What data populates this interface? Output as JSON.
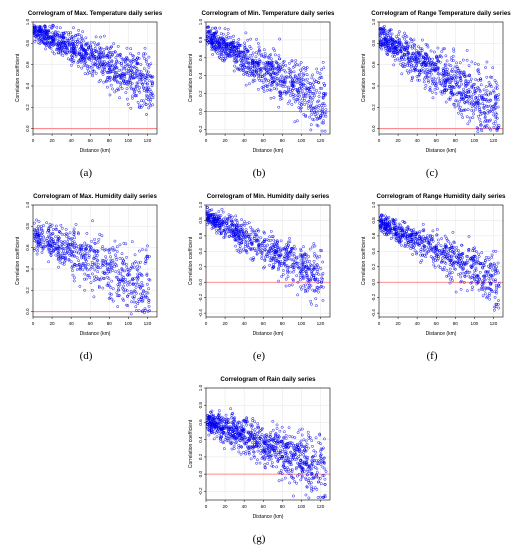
{
  "colors": {
    "points": "#0000ee",
    "zero_line": "#ff6666",
    "grid": "#e4e4e4",
    "frame": "#000000"
  },
  "chart_data": [
    {
      "type": "scatter",
      "title": "Correlogram of Max. Temperature daily series",
      "xlabel": "Distance (km)",
      "ylabel": "Correlation coefficient",
      "subfigure": "(a)",
      "xlim": [
        0,
        130
      ],
      "ylim": [
        -0.05,
        1.0
      ],
      "xticks": [
        0,
        20,
        40,
        60,
        80,
        100,
        120
      ],
      "yticks": [
        0.0,
        0.2,
        0.4,
        0.6,
        0.8,
        1.0
      ],
      "hline": 0,
      "grid": true,
      "n_points": 900,
      "trend": {
        "intercept": 0.93,
        "slope": -0.0042,
        "spread": 0.13,
        "xmax": 125
      }
    },
    {
      "type": "scatter",
      "title": "Correlogram of Min. Temperature daily series",
      "xlabel": "Distance (km)",
      "ylabel": "Correlation coefficient",
      "subfigure": "(b)",
      "xlim": [
        0,
        130
      ],
      "ylim": [
        -0.25,
        1.0
      ],
      "xticks": [
        0,
        20,
        40,
        60,
        80,
        100,
        120
      ],
      "yticks": [
        -0.2,
        0.0,
        0.2,
        0.4,
        0.6,
        0.8,
        1.0
      ],
      "hline": 0,
      "grid": true,
      "n_points": 900,
      "trend": {
        "intercept": 0.85,
        "slope": -0.0062,
        "spread": 0.17,
        "xmax": 125
      }
    },
    {
      "type": "scatter",
      "title": "Correlogram of Range Temperature daily series",
      "xlabel": "Distance (km)",
      "ylabel": "Correlation coefficient",
      "subfigure": "(c)",
      "xlim": [
        0,
        130
      ],
      "ylim": [
        -0.05,
        1.0
      ],
      "xticks": [
        0,
        20,
        40,
        60,
        80,
        100,
        120
      ],
      "yticks": [
        0.0,
        0.2,
        0.4,
        0.6,
        0.8,
        1.0
      ],
      "hline": 0,
      "grid": true,
      "n_points": 900,
      "trend": {
        "intercept": 0.87,
        "slope": -0.0058,
        "spread": 0.16,
        "xmax": 125
      }
    },
    {
      "type": "scatter",
      "title": "Correlogram of Max. Humidity daily series",
      "xlabel": "Distance (km)",
      "ylabel": "Correlation coefficient",
      "subfigure": "(d)",
      "xlim": [
        0,
        130
      ],
      "ylim": [
        -0.05,
        1.0
      ],
      "xticks": [
        0,
        20,
        40,
        60,
        80,
        100,
        120
      ],
      "yticks": [
        0.0,
        0.2,
        0.4,
        0.6,
        0.8,
        1.0
      ],
      "hline": 0,
      "grid": true,
      "n_points": 650,
      "trend": {
        "intercept": 0.72,
        "slope": -0.004,
        "spread": 0.18,
        "xmax": 122
      }
    },
    {
      "type": "scatter",
      "title": "Correlogram of Min. Humidity daily series",
      "xlabel": "Distance (km)",
      "ylabel": "Correlation coefficient",
      "subfigure": "(e)",
      "xlim": [
        0,
        130
      ],
      "ylim": [
        -0.45,
        1.0
      ],
      "xticks": [
        0,
        20,
        40,
        60,
        80,
        100,
        120
      ],
      "yticks": [
        -0.4,
        -0.2,
        0.0,
        0.2,
        0.4,
        0.6,
        0.8,
        1.0
      ],
      "hline": 0,
      "grid": true,
      "n_points": 750,
      "trend": {
        "intercept": 0.86,
        "slope": -0.0068,
        "spread": 0.17,
        "xmax": 122
      }
    },
    {
      "type": "scatter",
      "title": "Correlogram of Range Humidity daily series",
      "xlabel": "Distance (km)",
      "ylabel": "Correlation coefficient",
      "subfigure": "(f)",
      "xlim": [
        0,
        130
      ],
      "ylim": [
        -0.45,
        1.0
      ],
      "xticks": [
        0,
        20,
        40,
        60,
        80,
        100,
        120
      ],
      "yticks": [
        -0.4,
        -0.2,
        0.0,
        0.2,
        0.4,
        0.6,
        0.8,
        1.0
      ],
      "hline": 0,
      "grid": true,
      "n_points": 750,
      "trend": {
        "intercept": 0.78,
        "slope": -0.0062,
        "spread": 0.17,
        "xmax": 125
      }
    },
    {
      "type": "scatter",
      "title": "Correlogram of Rain daily series",
      "xlabel": "Distance (km)",
      "ylabel": "Correlation coefficient",
      "subfigure": "(g)",
      "xlim": [
        0,
        130
      ],
      "ylim": [
        -0.3,
        1.0
      ],
      "xticks": [
        0,
        20,
        40,
        60,
        80,
        100,
        120
      ],
      "yticks": [
        -0.2,
        0.0,
        0.2,
        0.4,
        0.6,
        0.8,
        1.0
      ],
      "hline": 0,
      "grid": true,
      "n_points": 950,
      "trend": {
        "intercept": 0.62,
        "slope": -0.0045,
        "spread": 0.18,
        "xmax": 125
      }
    }
  ]
}
